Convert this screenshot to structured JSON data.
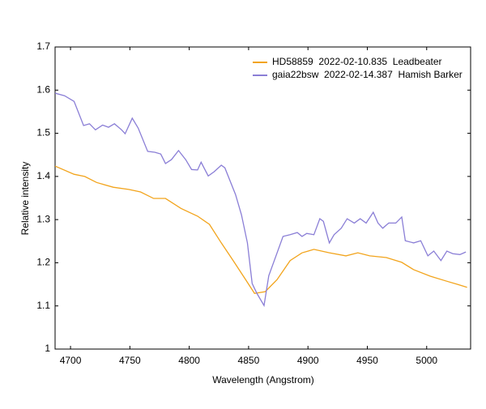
{
  "chart_data": {
    "type": "line",
    "x_label": "Wavelength (Angstrom)",
    "y_label": "Relative intensity",
    "xlim": [
      4687,
      5037
    ],
    "ylim": [
      1,
      1.7
    ],
    "xticks": [
      4700,
      4750,
      4800,
      4850,
      4900,
      4950,
      5000
    ],
    "yticks": [
      1,
      1.1,
      1.2,
      1.3,
      1.4,
      1.5,
      1.6,
      1.7
    ],
    "legend": "upper right",
    "series": [
      {
        "name": "HD58859  2022-02-10.835  Leadbeater",
        "color": "#f2a41c",
        "x": [
          4687,
          4703,
          4712,
          4722,
          4736,
          4749,
          4759,
          4770,
          4780,
          4793,
          4807,
          4817,
          4827,
          4837,
          4847,
          4855,
          4864,
          4874,
          4885,
          4895,
          4905,
          4918,
          4932,
          4942,
          4952,
          4966,
          4979,
          4989,
          5003,
          5016,
          5026,
          5034
        ],
        "values": [
          1.424,
          1.405,
          1.4,
          1.386,
          1.375,
          1.37,
          1.364,
          1.349,
          1.349,
          1.326,
          1.308,
          1.289,
          1.246,
          1.205,
          1.163,
          1.129,
          1.133,
          1.161,
          1.205,
          1.223,
          1.231,
          1.223,
          1.216,
          1.223,
          1.216,
          1.212,
          1.201,
          1.184,
          1.169,
          1.158,
          1.15,
          1.143
        ]
      },
      {
        "name": "gaia22bsw  2022-02-14.387  Hamish Barker",
        "color": "#8a7ed6",
        "x": [
          4687,
          4695,
          4703,
          4711,
          4716,
          4721,
          4727,
          4732,
          4737,
          4743,
          4746,
          4752,
          4757,
          4765,
          4771,
          4776,
          4780,
          4785,
          4791,
          4797,
          4802,
          4807,
          4810,
          4816,
          4821,
          4827,
          4830,
          4839,
          4844,
          4849,
          4853,
          4857,
          4863,
          4867,
          4874,
          4879,
          4885,
          4891,
          4895,
          4899,
          4905,
          4910,
          4913,
          4918,
          4922,
          4928,
          4933,
          4939,
          4944,
          4949,
          4955,
          4959,
          4963,
          4968,
          4974,
          4979,
          4982,
          4989,
          4995,
          5001,
          5006,
          5012,
          5017,
          5022,
          5028,
          5033
        ],
        "values": [
          1.593,
          1.587,
          1.574,
          1.518,
          1.522,
          1.508,
          1.519,
          1.514,
          1.522,
          1.508,
          1.499,
          1.535,
          1.512,
          1.458,
          1.456,
          1.452,
          1.43,
          1.439,
          1.46,
          1.439,
          1.416,
          1.415,
          1.433,
          1.401,
          1.411,
          1.426,
          1.42,
          1.358,
          1.311,
          1.246,
          1.152,
          1.129,
          1.101,
          1.17,
          1.223,
          1.261,
          1.265,
          1.27,
          1.261,
          1.268,
          1.265,
          1.302,
          1.296,
          1.246,
          1.265,
          1.28,
          1.302,
          1.292,
          1.302,
          1.292,
          1.317,
          1.292,
          1.28,
          1.292,
          1.292,
          1.306,
          1.251,
          1.246,
          1.251,
          1.216,
          1.227,
          1.205,
          1.227,
          1.221,
          1.219,
          1.225
        ]
      }
    ]
  }
}
